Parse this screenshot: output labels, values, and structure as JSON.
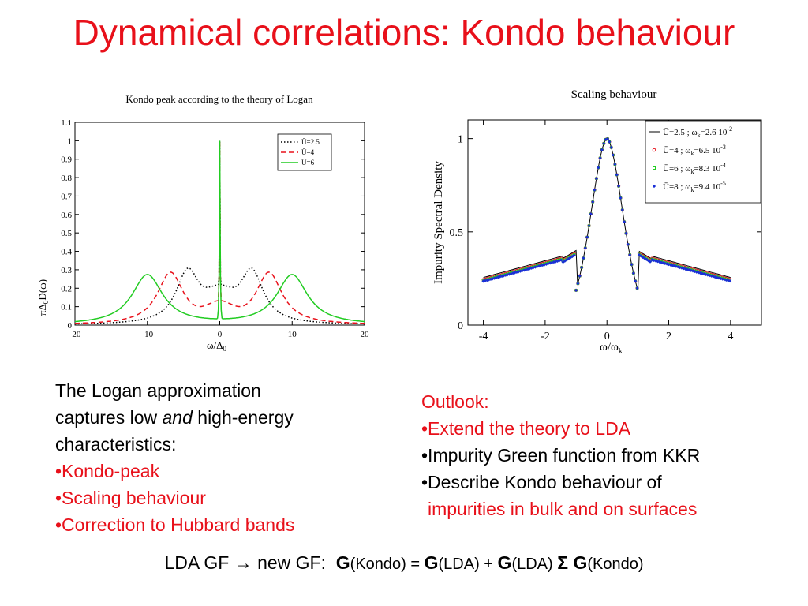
{
  "slide_title": "Dynamical correlations: Kondo behaviour",
  "left_text": {
    "line1": "The Logan approximation",
    "line2_a": "captures low ",
    "line2_em": "and",
    "line2_b": " high-energy",
    "line3": "characteristics:",
    "bullets": [
      "•Kondo-peak",
      "•Scaling behaviour",
      "•Correction to Hubbard bands"
    ]
  },
  "right_text": {
    "heading": "Outlook:",
    "b1": "•Extend the theory to LDA",
    "b2": "•Impurity Green function from KKR",
    "b3": "•Describe Kondo behaviour of",
    "b3_cont": "impurities in bulk and on surfaces"
  },
  "formula": {
    "lead": "LDA GF → new GF:",
    "G": "G",
    "kondo": "(Kondo) = ",
    "lda1": "(LDA) + ",
    "lda2": "(LDA) ",
    "sigma": "Σ",
    "kondo2": "(Kondo)"
  },
  "colors": {
    "title": "#e8101a",
    "series_red": "#e8101a",
    "series_green": "#22cc22",
    "series_blue": "#1a2fd6"
  },
  "chart_data": [
    {
      "type": "line",
      "title": "Kondo peak according to the theory of Logan",
      "xlabel": "ω/Δ0",
      "ylabel": "πΔ0D(ω)",
      "xlim": [
        -20,
        20
      ],
      "ylim": [
        0,
        1.1
      ],
      "xticks": [
        "-20",
        "-10",
        "0",
        "10",
        "20"
      ],
      "yticks": [
        "0",
        "0.1",
        "0.2",
        "0.3",
        "0.4",
        "0.5",
        "0.6",
        "0.7",
        "0.8",
        "0.9",
        "1",
        "1.1"
      ],
      "legend_position": "top-right",
      "series": [
        {
          "name": "Ū=2.5",
          "style": "dotted",
          "color": "#000000",
          "hubbard_position": 4.4,
          "hubbard_height": 0.29,
          "hubbard_width": 2.0,
          "center_dip": 0.12
        },
        {
          "name": "Ū=4",
          "style": "dashed",
          "color": "#e8101a",
          "hubbard_position": 6.8,
          "hubbard_height": 0.28,
          "hubbard_width": 2.2,
          "center_dip": 0.08
        },
        {
          "name": "Ū=6",
          "style": "solid",
          "color": "#22cc22",
          "hubbard_position": 10.0,
          "hubbard_height": 0.27,
          "hubbard_width": 2.6,
          "center_dip": 0.0
        }
      ],
      "kondo_peak": {
        "x": 0,
        "y": 1.0
      }
    },
    {
      "type": "line",
      "title": "Scaling behaviour",
      "xlabel": "ω/ωk",
      "ylabel": "Impurity Spectral Density",
      "xlim": [
        -4.5,
        5
      ],
      "ylim": [
        0,
        1.1
      ],
      "xticks": [
        "-4",
        "-2",
        "0",
        "2",
        "4"
      ],
      "yticks": [
        "0",
        "0.5",
        "1"
      ],
      "legend_position": "top-right",
      "series": [
        {
          "name": "Ū=2.5 ; ωk=2.6 10-2",
          "label_parts": [
            "Ū=2.5 ; ω",
            "k",
            "=2.6 10",
            "-2"
          ],
          "marker": "line",
          "color": "#000000",
          "tail_offset": 0.02
        },
        {
          "name": "Ū=4 ; ωk=6.5 10-3",
          "label_parts": [
            "Ū=4 ; ω",
            "k",
            "=6.5 10",
            "-3"
          ],
          "marker": "circle",
          "color": "#e8101a",
          "tail_offset": 0.008
        },
        {
          "name": "Ū=6 ; ωk=8.3 10-4",
          "label_parts": [
            "Ū=6 ; ω",
            "k",
            "=8.3 10",
            "-4"
          ],
          "marker": "square",
          "color": "#22cc22",
          "tail_offset": 0.004
        },
        {
          "name": "Ū=8 ; ωk=9.4 10-5",
          "label_parts": [
            "Ū=8 ; ω",
            "k",
            "=9.4 10",
            "-5"
          ],
          "marker": "diamond",
          "color": "#1a2fd6",
          "tail_offset": 0.0
        }
      ],
      "peak": {
        "x": 0,
        "y": 1.0
      },
      "kink_x": 1.45
    }
  ]
}
